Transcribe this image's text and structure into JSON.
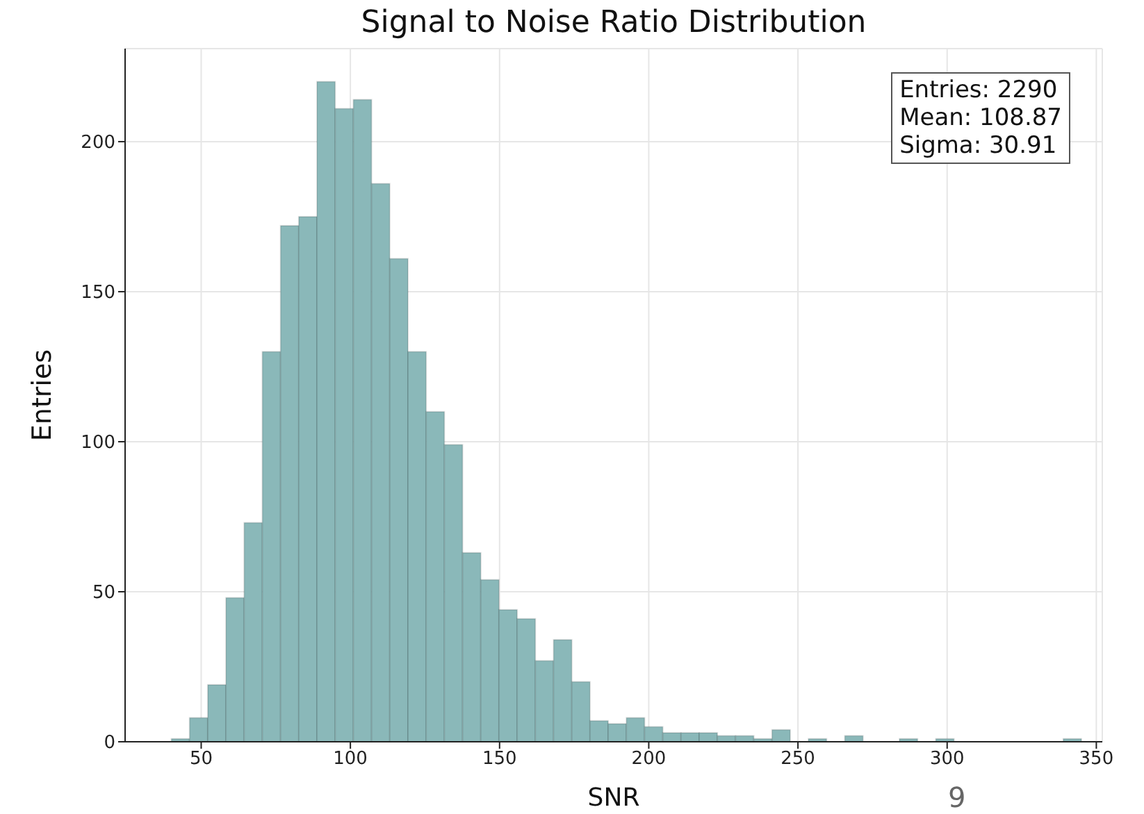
{
  "chart_data": {
    "type": "histogram",
    "title": "Signal to Noise Ratio Distribution",
    "xlabel": "SNR",
    "ylabel": "Entries",
    "bins": [
      40,
      46.1,
      52.2,
      58.3,
      64.4,
      70.5,
      76.6,
      82.7,
      88.8,
      94.9,
      101,
      107.1,
      113.2,
      119.3,
      125.4,
      131.5,
      137.6,
      143.7,
      149.8,
      155.9,
      162,
      168.1,
      174.2,
      180.3,
      186.4,
      192.5,
      198.6,
      204.7,
      210.8,
      216.9,
      223,
      229.1,
      235.2,
      241.3,
      247.4,
      253.5,
      259.6,
      265.7,
      271.8,
      277.9,
      284,
      290.1,
      296.2,
      302.3,
      308.4,
      314.5,
      320.6,
      326.7,
      332.8,
      338.9,
      345
    ],
    "values": [
      1,
      8,
      19,
      48,
      73,
      130,
      172,
      175,
      220,
      211,
      214,
      186,
      161,
      130,
      110,
      99,
      63,
      54,
      44,
      41,
      27,
      34,
      20,
      7,
      6,
      8,
      5,
      3,
      3,
      3,
      2,
      2,
      1,
      4,
      0,
      1,
      0,
      2,
      0,
      0,
      1,
      0,
      1,
      0,
      0,
      0,
      0,
      0,
      0,
      1
    ],
    "color": "#8ab8b9",
    "xlim": [
      24.5,
      352
    ],
    "xticks": [
      50,
      100,
      150,
      200,
      250,
      300,
      350
    ],
    "ylim": [
      0,
      231
    ],
    "yticks": [
      0,
      50,
      100,
      150,
      200
    ],
    "grid": true,
    "annotations": [
      "Entries: 2290\nMean: 108.87\nSigma: 30.91",
      "9"
    ]
  }
}
